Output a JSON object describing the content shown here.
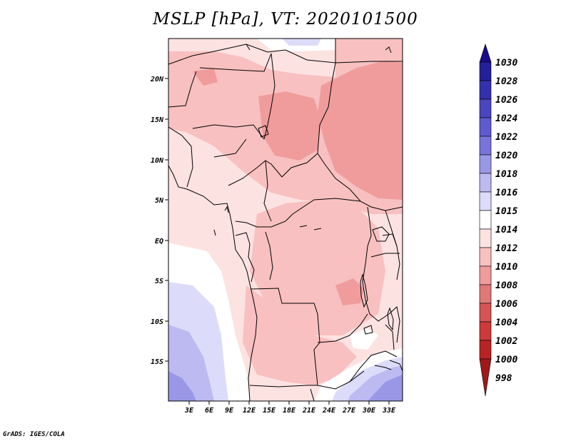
{
  "title": "MSLP [hPa], VT: 2020101500",
  "footer": "GrADS: IGES/COLA",
  "axes": {
    "lat_labels": [
      "20N",
      "15N",
      "10N",
      "5N",
      "EQ",
      "5S",
      "10S",
      "15S"
    ],
    "lon_labels": [
      "3E",
      "6E",
      "9E",
      "12E",
      "15E",
      "18E",
      "21E",
      "24E",
      "27E",
      "30E",
      "33E"
    ]
  },
  "colorbar": {
    "labels": [
      "1030",
      "1028",
      "1026",
      "1024",
      "1022",
      "1020",
      "1018",
      "1016",
      "1015",
      "1014",
      "1012",
      "1010",
      "1008",
      "1006",
      "1004",
      "1002",
      "1000",
      "998"
    ],
    "colors": {
      "top_arrow": "#1a0a8c",
      "1028": "#24209a",
      "1026": "#3530ae",
      "1024": "#4a46c0",
      "1022": "#5e5ad0",
      "1020": "#7874dc",
      "1018": "#9a98e6",
      "1016": "#bcbaf0",
      "1015": "#dcdcfa",
      "1014": "#ffffff",
      "1012": "#fde2e2",
      "1010": "#f8c0c0",
      "1008": "#f09c9c",
      "1006": "#e07878",
      "1004": "#d65454",
      "1002": "#cc3a3a",
      "1000": "#b82424",
      "bottom_arrow": "#a01818"
    }
  }
}
